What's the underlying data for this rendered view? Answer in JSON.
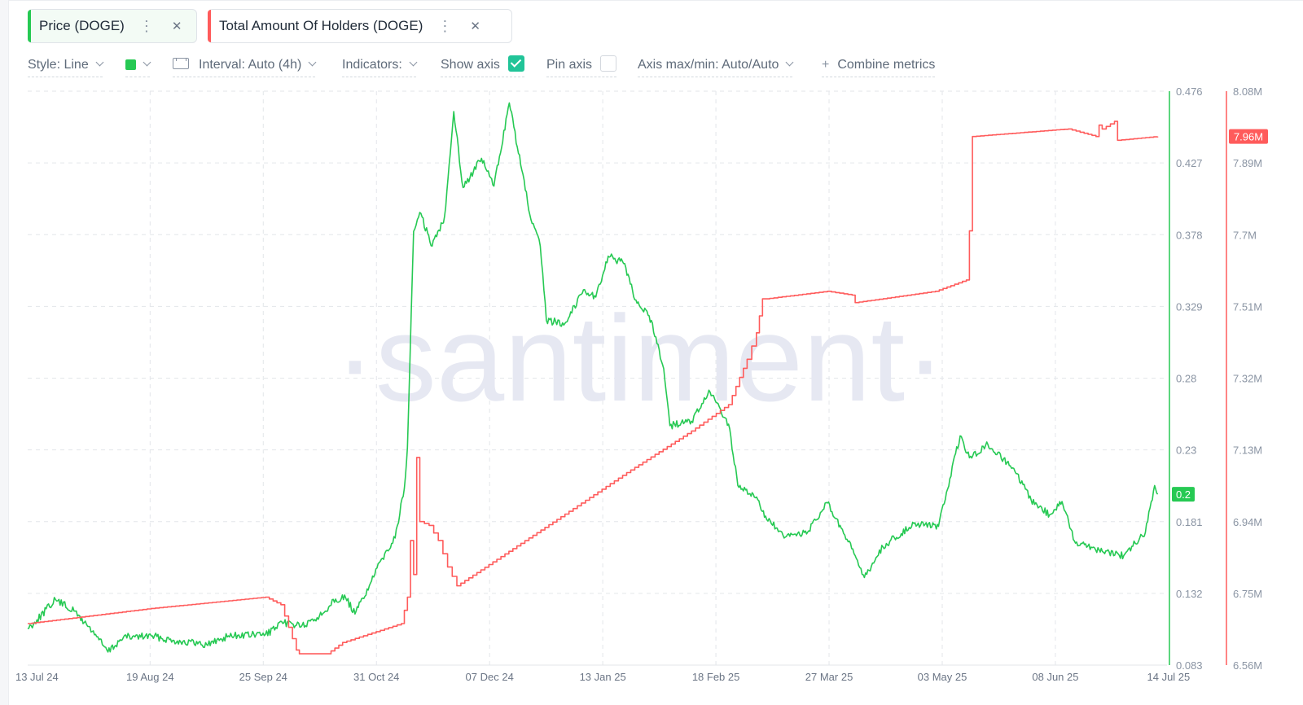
{
  "tabs": [
    {
      "label": "Price (DOGE)",
      "color": "#26c953"
    },
    {
      "label": "Total Amount Of Holders (DOGE)",
      "color": "#ff5b5b"
    }
  ],
  "toolbar": {
    "style": "Style: Line",
    "interval": "Interval: Auto (4h)",
    "indicators": "Indicators:",
    "show_axis": "Show axis",
    "show_axis_checked": true,
    "pin_axis": "Pin axis",
    "pin_axis_checked": false,
    "axis_maxmin": "Axis max/min: Auto/Auto",
    "combine": "Combine metrics"
  },
  "watermark": "·santiment·",
  "chart_data": {
    "type": "line",
    "x_axis": {
      "start": "2024-07-10",
      "end": "2025-07-14",
      "tick_labels": [
        "13 Jul 24",
        "19 Aug 24",
        "25 Sep 24",
        "31 Oct 24",
        "07 Dec 24",
        "13 Jan 25",
        "18 Feb 25",
        "27 Mar 25",
        "03 May 25",
        "08 Jun 25",
        "14 Jul 25"
      ]
    },
    "y_left": {
      "label": "",
      "range": [
        0.083,
        0.476
      ],
      "tick_labels": [
        "0.476",
        "0.427",
        "0.378",
        "0.329",
        "0.28",
        "0.23",
        "0.181",
        "0.132",
        "0.083"
      ],
      "color": "#26c953",
      "current_label": "0.2",
      "current": 0.2
    },
    "y_right": {
      "label": "",
      "range": [
        6.56,
        8.08
      ],
      "unit": "M",
      "tick_labels": [
        "8.08M",
        "7.89M",
        "7.7M",
        "7.51M",
        "7.32M",
        "7.13M",
        "6.94M",
        "6.75M",
        "6.56M"
      ],
      "color": "#ff5b5b",
      "current_label": "7.96M",
      "current": 7.96
    },
    "grid": true,
    "series": [
      {
        "name": "Price (DOGE)",
        "axis": "left",
        "color": "#26c953",
        "x": [
          "2024-07-10",
          "2024-07-13",
          "2024-07-19",
          "2024-07-25",
          "2024-08-01",
          "2024-08-05",
          "2024-08-10",
          "2024-08-19",
          "2024-08-26",
          "2024-09-06",
          "2024-09-13",
          "2024-09-25",
          "2024-10-01",
          "2024-10-08",
          "2024-10-14",
          "2024-10-17",
          "2024-10-21",
          "2024-10-24",
          "2024-10-29",
          "2024-11-03",
          "2024-11-06",
          "2024-11-09",
          "2024-11-10",
          "2024-11-12",
          "2024-11-14",
          "2024-11-18",
          "2024-11-22",
          "2024-11-25",
          "2024-11-28",
          "2024-12-04",
          "2024-12-08",
          "2024-12-13",
          "2024-12-20",
          "2024-12-23",
          "2024-12-25",
          "2024-12-31",
          "2025-01-06",
          "2025-01-10",
          "2025-01-14",
          "2025-01-19",
          "2025-01-23",
          "2025-01-28",
          "2025-02-01",
          "2025-02-03",
          "2025-02-10",
          "2025-02-16",
          "2025-02-22",
          "2025-02-25",
          "2025-03-02",
          "2025-03-06",
          "2025-03-12",
          "2025-03-20",
          "2025-03-26",
          "2025-04-04",
          "2025-04-07",
          "2025-04-13",
          "2025-04-23",
          "2025-05-01",
          "2025-05-08",
          "2025-05-11",
          "2025-05-17",
          "2025-05-25",
          "2025-05-31",
          "2025-06-06",
          "2025-06-10",
          "2025-06-14",
          "2025-06-22",
          "2025-06-30",
          "2025-07-07",
          "2025-07-10",
          "2025-07-11"
        ],
        "values": [
          0.108,
          0.114,
          0.128,
          0.12,
          0.104,
          0.092,
          0.102,
          0.103,
          0.1,
          0.097,
          0.103,
          0.104,
          0.112,
          0.11,
          0.119,
          0.128,
          0.129,
          0.118,
          0.139,
          0.161,
          0.17,
          0.204,
          0.232,
          0.38,
          0.393,
          0.37,
          0.39,
          0.462,
          0.41,
          0.43,
          0.411,
          0.468,
          0.388,
          0.37,
          0.319,
          0.317,
          0.34,
          0.335,
          0.363,
          0.358,
          0.333,
          0.319,
          0.286,
          0.247,
          0.25,
          0.27,
          0.248,
          0.206,
          0.2,
          0.185,
          0.17,
          0.175,
          0.194,
          0.158,
          0.143,
          0.164,
          0.18,
          0.178,
          0.24,
          0.225,
          0.234,
          0.218,
          0.196,
          0.186,
          0.195,
          0.168,
          0.162,
          0.158,
          0.174,
          0.206,
          0.2
        ]
      },
      {
        "name": "Total Amount Of Holders (DOGE)",
        "axis": "right",
        "color": "#ff5b5b",
        "x": [
          "2024-07-10",
          "2024-08-19",
          "2024-09-25",
          "2024-09-30",
          "2024-10-05",
          "2024-10-06",
          "2024-10-15",
          "2024-10-20",
          "2024-11-08",
          "2024-11-10",
          "2024-11-11",
          "2024-11-12",
          "2024-11-13",
          "2024-11-14",
          "2024-11-17",
          "2024-11-20",
          "2024-11-23",
          "2024-11-26",
          "2024-12-31",
          "2025-01-20",
          "2025-02-10",
          "2025-02-22",
          "2025-02-28",
          "2025-03-03",
          "2025-03-05",
          "2025-03-06",
          "2025-03-26",
          "2025-04-03",
          "2025-04-04",
          "2025-04-30",
          "2025-05-10",
          "2025-05-11",
          "2025-05-12",
          "2025-06-12",
          "2025-06-21",
          "2025-06-22",
          "2025-06-23",
          "2025-06-27",
          "2025-06-28",
          "2025-07-11"
        ],
        "values": [
          6.67,
          6.71,
          6.74,
          6.72,
          6.6,
          6.59,
          6.59,
          6.62,
          6.67,
          6.74,
          6.89,
          6.8,
          7.11,
          6.94,
          6.93,
          6.89,
          6.82,
          6.77,
          6.96,
          7.07,
          7.18,
          7.25,
          7.37,
          7.44,
          7.53,
          7.53,
          7.55,
          7.54,
          7.52,
          7.55,
          7.58,
          7.71,
          7.96,
          7.98,
          7.96,
          7.99,
          7.98,
          8.0,
          7.95,
          7.96
        ]
      }
    ]
  }
}
